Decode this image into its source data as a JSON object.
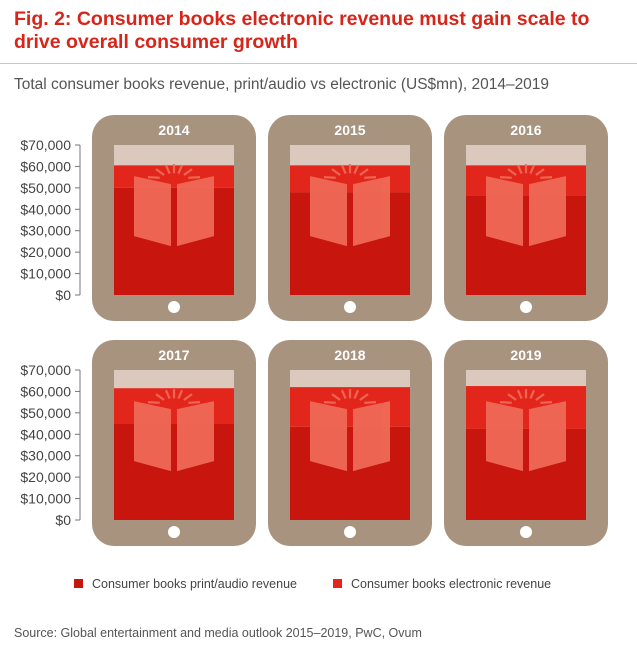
{
  "header": {
    "title": "Fig. 2: Consumer books electronic revenue must gain scale to drive overall consumer growth",
    "subtitle": "Total consumer books revenue, print/audio vs electronic (US$mn), 2014–2019"
  },
  "source": "Source: Global entertainment and media outlook 2015–2019, PwC, Ovum",
  "colors": {
    "tablet": "#a8937f",
    "screen_background": "#dbc9bd",
    "print_audio": "#c8150e",
    "electronic": "#e3261b",
    "book_icon": "#ef6a56",
    "button": "#ffffff"
  },
  "chart_data": {
    "type": "bar",
    "layout": "small-multiples (one tablet per year)",
    "categories": [
      "2014",
      "2015",
      "2016",
      "2017",
      "2018",
      "2019"
    ],
    "ylim": [
      0,
      70000
    ],
    "yticks": [
      "$0",
      "$10,000",
      "$20,000",
      "$30,000",
      "$40,000",
      "$50,000",
      "$60,000",
      "$70,000"
    ],
    "stacked": true,
    "series": [
      {
        "name": "Consumer books print/audio revenue",
        "color": "#c8150e",
        "values": [
          50000,
          48000,
          46500,
          45000,
          43500,
          42500
        ]
      },
      {
        "name": "Consumer books electronic revenue",
        "color": "#e3261b",
        "values": [
          10500,
          12500,
          14000,
          16500,
          18500,
          20000
        ]
      }
    ]
  }
}
